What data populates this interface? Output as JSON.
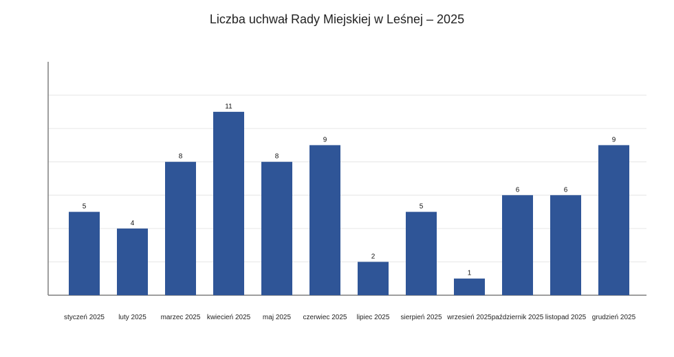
{
  "chart_data": {
    "type": "bar",
    "title": "Liczba uchwał Rady Miejskiej w Leśnej – 2025",
    "xlabel": "",
    "ylabel": "",
    "categories": [
      "styczeń 2025",
      "luty 2025",
      "marzec 2025",
      "kwiecień 2025",
      "maj 2025",
      "czerwiec 2025",
      "lipiec 2025",
      "sierpień 2025",
      "wrzesień 2025",
      "październik 2025",
      "listopad 2025",
      "grudzień 2025"
    ],
    "values": [
      5,
      4,
      8,
      11,
      8,
      9,
      2,
      5,
      1,
      6,
      6,
      9
    ],
    "ylim": [
      0,
      14
    ],
    "grid": true,
    "data_labels": true,
    "bar_color": "#2f5597",
    "grid_color": "#e6e6e6",
    "axis_color": "#7f7f7f"
  }
}
